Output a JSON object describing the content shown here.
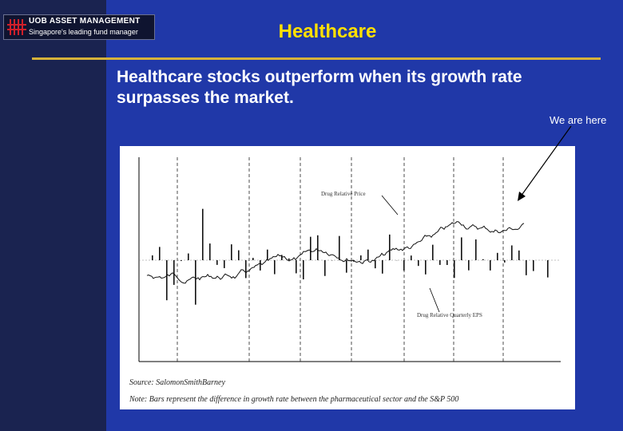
{
  "header": {
    "logo_name": "UOB ASSET MANAGEMENT",
    "logo_tagline": "Singapore's leading fund manager",
    "title": "Healthcare"
  },
  "headline": "Healthcare stocks outperform when its growth rate surpasses the market.",
  "annotation": "We are here",
  "chart": {
    "price_label": "Drug Relative Price",
    "eps_label": "Drug Relative Quarterly EPS"
  },
  "source": "Source: SalomonSmithBarney",
  "note": "Note: Bars represent the difference in growth rate between the pharmaceutical sector and the S&P 500"
}
